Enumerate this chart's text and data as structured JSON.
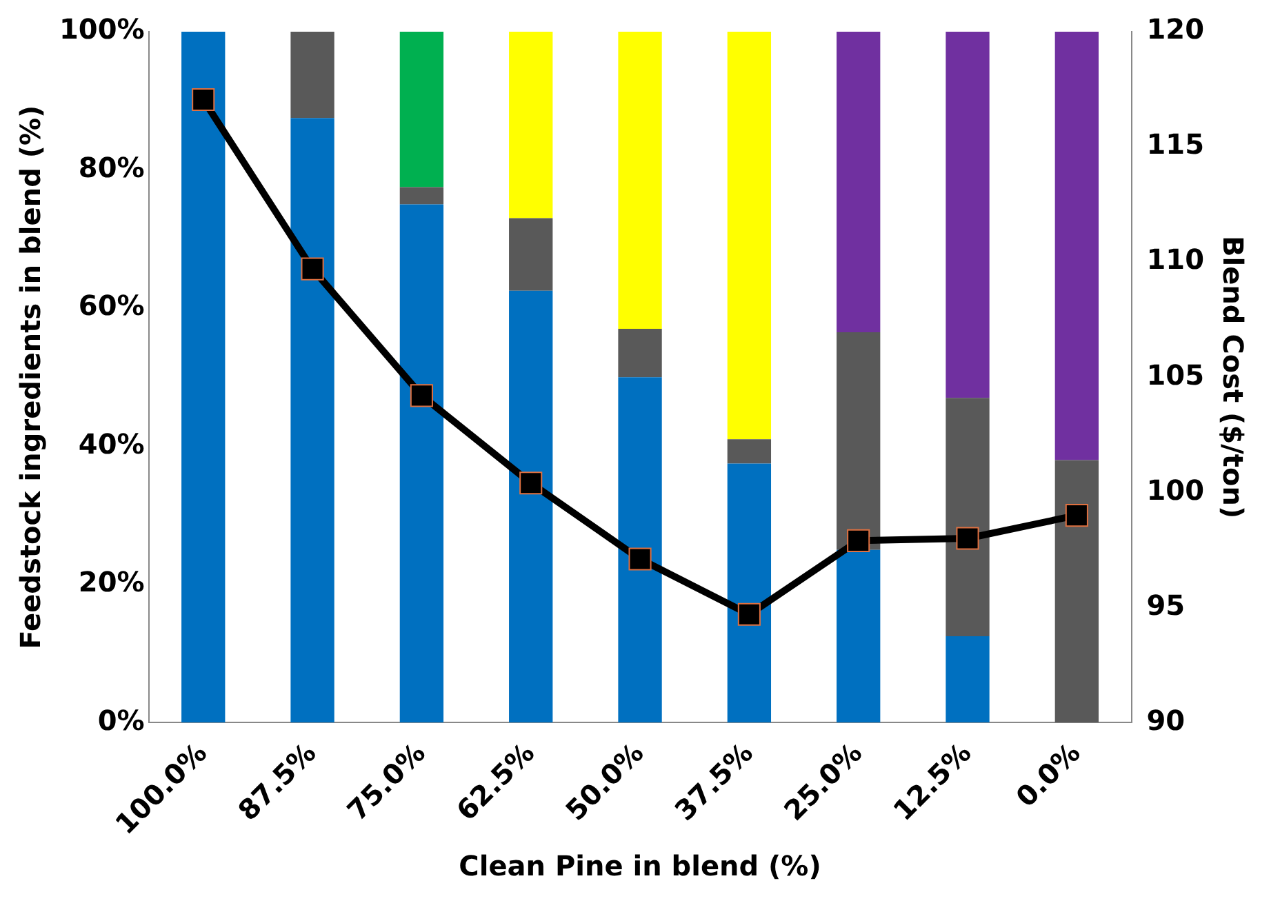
{
  "chart_data": {
    "type": "bar",
    "stacked": true,
    "xlabel": "Clean Pine in blend (%)",
    "ylabel": "Feedstock ingredients in blend (%)",
    "y2label": "Blend Cost ($/ton)",
    "categories": [
      "100.0%",
      "87.5%",
      "75.0%",
      "62.5%",
      "50.0%",
      "37.5%",
      "25.0%",
      "12.5%",
      "0.0%"
    ],
    "series": [
      {
        "color": "#0070c0",
        "values": [
          100,
          87.5,
          75,
          62.5,
          50,
          37.5,
          25,
          12.5,
          0
        ]
      },
      {
        "color": "#595959",
        "values": [
          0,
          12.5,
          2.5,
          10.5,
          7,
          3.5,
          31.5,
          34.5,
          38
        ]
      },
      {
        "color": "#00b050",
        "values": [
          0,
          0,
          22.5,
          0,
          0,
          0,
          0,
          0,
          0
        ]
      },
      {
        "color": "#ffff00",
        "values": [
          0,
          0,
          0,
          27,
          43,
          59,
          0,
          0,
          0
        ]
      },
      {
        "color": "#7030a0",
        "values": [
          0,
          0,
          0,
          0,
          0,
          0,
          43.5,
          53,
          62
        ]
      },
      {
        "type": "line",
        "axis": "y2",
        "color": "#000000",
        "marker": "square",
        "values": [
          117.05,
          109.7,
          104.2,
          100.4,
          97.1,
          94.7,
          97.9,
          98.0,
          99.0
        ]
      }
    ],
    "ylim": [
      0,
      100
    ],
    "yticks": [
      {
        "value": 0,
        "label": "0%"
      },
      {
        "value": 20,
        "label": "20%"
      },
      {
        "value": 40,
        "label": "40%"
      },
      {
        "value": 60,
        "label": "60%"
      },
      {
        "value": 80,
        "label": "80%"
      },
      {
        "value": 100,
        "label": "100%"
      }
    ],
    "y2lim": [
      90,
      120
    ],
    "y2ticks": [
      90,
      95,
      100,
      105,
      110,
      115,
      120
    ],
    "grid": false,
    "legend": false
  }
}
